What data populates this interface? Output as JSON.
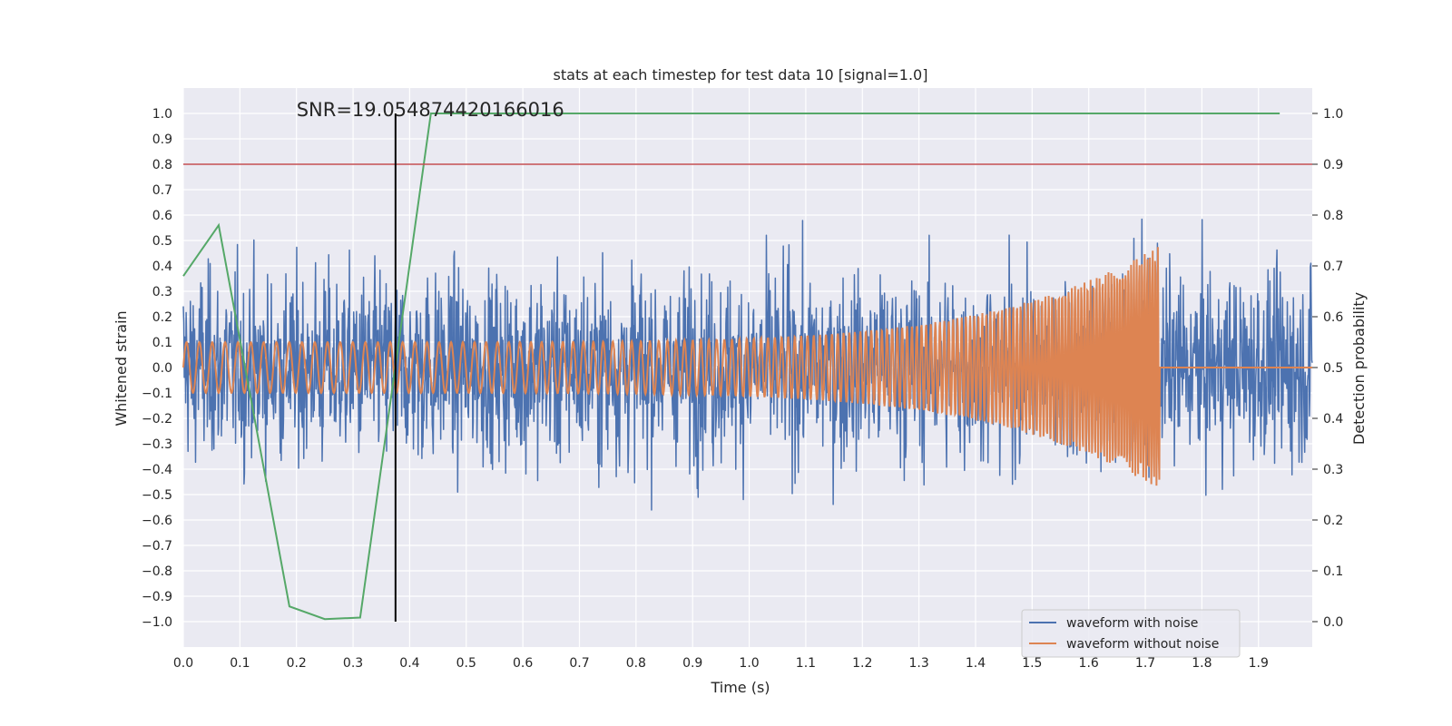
{
  "chart_data": {
    "type": "line",
    "title": "stats at each timestep for test data 10 [signal=1.0]",
    "xlabel": "Time (s)",
    "ylabel": "Whitened strain",
    "y2label": "Detection probability",
    "xlim": [
      0.0,
      1.995
    ],
    "ylim": [
      -1.1,
      1.1
    ],
    "y2lim": [
      -0.05,
      1.05
    ],
    "xticks": [
      "0.0",
      "0.1",
      "0.2",
      "0.3",
      "0.4",
      "0.5",
      "0.6",
      "0.7",
      "0.8",
      "0.9",
      "1.0",
      "1.1",
      "1.2",
      "1.3",
      "1.4",
      "1.5",
      "1.6",
      "1.7",
      "1.8",
      "1.9"
    ],
    "yticks": [
      "1.0",
      "0.9",
      "0.8",
      "0.7",
      "0.6",
      "0.5",
      "0.4",
      "0.3",
      "0.2",
      "0.1",
      "0.0",
      "−0.1",
      "−0.2",
      "−0.3",
      "−0.4",
      "−0.5",
      "−0.6",
      "−0.7",
      "−0.8",
      "−0.9",
      "−1.0"
    ],
    "y2ticks": [
      "1.0",
      "0.9",
      "0.8",
      "0.7",
      "0.6",
      "0.5",
      "0.4",
      "0.3",
      "0.2",
      "0.1",
      "0.0"
    ],
    "grid": true,
    "legend_position": "lower-right",
    "annotation": {
      "text": "SNR=19.054874420166016",
      "x": 0.2,
      "y": 1.0
    },
    "threshold_y2": 0.9,
    "merger_time": 0.375,
    "series": [
      {
        "name": "waveform with noise",
        "color": "#4c72b0",
        "axis": "left",
        "description_points": "dense noisy strain, amplitude roughly within [-1.0, 1.0]"
      },
      {
        "name": "waveform without noise",
        "color": "#dd8452",
        "axis": "left",
        "chirp": {
          "start_amp": 0.1,
          "end_amp": 0.48,
          "end_time": 1.725,
          "start_freq_hz": 44
        }
      },
      {
        "name": "",
        "color": "#55a868",
        "axis": "right",
        "x": [
          0.0,
          0.0625,
          0.1875,
          0.25,
          0.3125,
          0.4375,
          1.9375
        ],
        "values": [
          0.68,
          0.78,
          0.03,
          0.005,
          0.008,
          1.0,
          1.0
        ]
      }
    ],
    "colors": {
      "threshold": "#c44e52",
      "merger": "#000000",
      "background": "#eaeaf2",
      "grid": "#ffffff"
    }
  }
}
